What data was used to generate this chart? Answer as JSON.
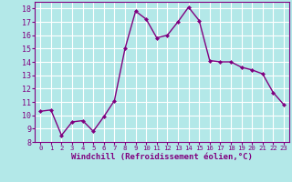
{
  "x": [
    0,
    1,
    2,
    3,
    4,
    5,
    6,
    7,
    8,
    9,
    10,
    11,
    12,
    13,
    14,
    15,
    16,
    17,
    18,
    19,
    20,
    21,
    22,
    23
  ],
  "y": [
    10.3,
    10.4,
    8.5,
    9.5,
    9.6,
    8.8,
    9.9,
    11.1,
    15.0,
    17.8,
    17.2,
    15.8,
    16.0,
    17.0,
    18.1,
    17.1,
    14.1,
    14.0,
    14.0,
    13.6,
    13.4,
    13.1,
    11.7,
    10.8
  ],
  "line_color": "#800080",
  "marker": "D",
  "marker_size": 2.0,
  "bg_color": "#b3e8e8",
  "grid_color": "#ffffff",
  "xlabel": "Windchill (Refroidissement éolien,°C)",
  "xlim": [
    -0.5,
    23.5
  ],
  "ylim": [
    8,
    18.5
  ],
  "yticks": [
    8,
    9,
    10,
    11,
    12,
    13,
    14,
    15,
    16,
    17,
    18
  ],
  "xticks": [
    0,
    1,
    2,
    3,
    4,
    5,
    6,
    7,
    8,
    9,
    10,
    11,
    12,
    13,
    14,
    15,
    16,
    17,
    18,
    19,
    20,
    21,
    22,
    23
  ],
  "xlabel_color": "#800080",
  "tick_color": "#800080",
  "spine_color": "#800080",
  "xlabel_fontsize": 6.5,
  "ytick_fontsize": 6.0,
  "xtick_fontsize": 5.2,
  "linewidth": 1.0
}
